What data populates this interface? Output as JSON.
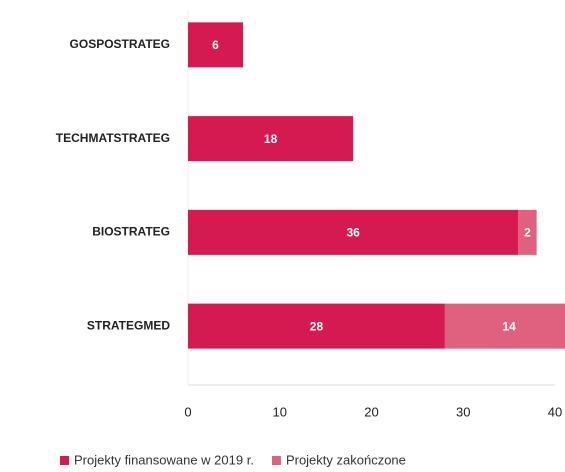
{
  "chart_data": {
    "type": "stacked-barh",
    "categories": [
      "GOSPOSTRATEG",
      "TECHMATSTRATEG",
      "BIOSTRATEG",
      "STRATEGMED"
    ],
    "series": [
      {
        "name": "Projekty finansowane w 2019 r.",
        "color": "#d41a50",
        "values": [
          6,
          18,
          36,
          28
        ]
      },
      {
        "name": "Projekty zakończone",
        "color": "#e0607f",
        "values": [
          null,
          null,
          2,
          14
        ]
      }
    ],
    "xlim": [
      0,
      40
    ],
    "xticks": [
      0,
      10,
      20,
      30,
      40
    ],
    "grid": false
  }
}
